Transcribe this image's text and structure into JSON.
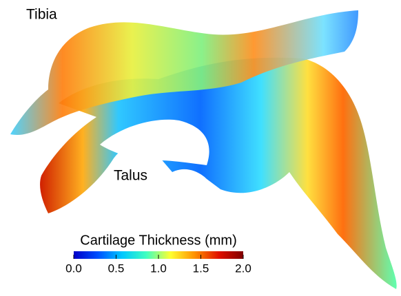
{
  "labels": {
    "tibia": "Tibia",
    "talus": "Talus"
  },
  "colorbar": {
    "title": "Cartilage Thickness (mm)",
    "range": [
      0,
      2
    ],
    "ticks": [
      {
        "value": 0,
        "label": "0.0"
      },
      {
        "value": 0.5,
        "label": "0.5"
      },
      {
        "value": 1,
        "label": "1.0"
      },
      {
        "value": 1.5,
        "label": "1.5"
      },
      {
        "value": 2,
        "label": "2.0"
      }
    ],
    "colors": [
      "#0000c8",
      "#0050ff",
      "#00c8ff",
      "#40ffc0",
      "#ffff30",
      "#ff9000",
      "#e01000",
      "#800000"
    ]
  }
}
